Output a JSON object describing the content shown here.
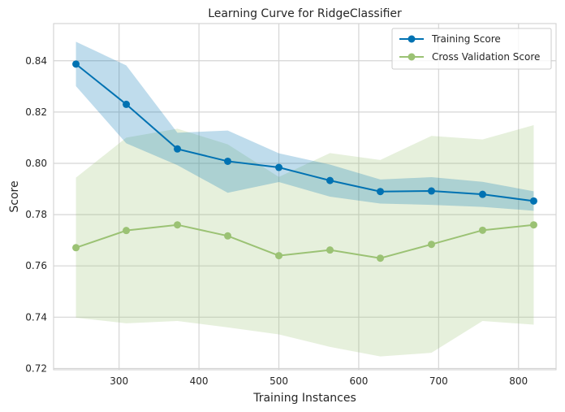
{
  "chart_data": {
    "type": "line",
    "title": "Learning Curve for RidgeClassifier",
    "xlabel": "Training Instances",
    "ylabel": "Score",
    "xlim": [
      218,
      847
    ],
    "ylim": [
      0.7195,
      0.8545
    ],
    "xticks": [
      300,
      400,
      500,
      600,
      700,
      800
    ],
    "yticks": [
      0.72,
      0.74,
      0.76,
      0.78,
      0.8,
      0.82,
      0.84
    ],
    "ytick_labels": [
      "0.72",
      "0.74",
      "0.76",
      "0.78",
      "0.80",
      "0.82",
      "0.84"
    ],
    "grid": true,
    "legend_position": "top-right",
    "x": [
      246,
      309,
      373,
      436,
      500,
      564,
      627,
      691,
      755,
      819
    ],
    "series": [
      {
        "name": "Training Score",
        "color": "#0072b2",
        "values": [
          0.8387,
          0.823,
          0.8056,
          0.8008,
          0.7984,
          0.7933,
          0.789,
          0.7892,
          0.7879,
          0.7853
        ],
        "band_upper": [
          0.8474,
          0.8382,
          0.8119,
          0.8128,
          0.8039,
          0.7995,
          0.7937,
          0.7946,
          0.7928,
          0.7891
        ],
        "band_lower": [
          0.8301,
          0.8078,
          0.7993,
          0.7885,
          0.7927,
          0.787,
          0.7843,
          0.7838,
          0.783,
          0.7815
        ]
      },
      {
        "name": "Cross Validation Score",
        "color": "#9bc274",
        "values": [
          0.7671,
          0.7738,
          0.776,
          0.7717,
          0.764,
          0.7662,
          0.763,
          0.7684,
          0.7739,
          0.776
        ],
        "band_upper": [
          0.7944,
          0.81,
          0.8135,
          0.8074,
          0.7947,
          0.804,
          0.8013,
          0.8107,
          0.8093,
          0.8149
        ],
        "band_lower": [
          0.7398,
          0.7376,
          0.7385,
          0.736,
          0.7333,
          0.7284,
          0.7247,
          0.7261,
          0.7385,
          0.7371
        ]
      }
    ]
  }
}
